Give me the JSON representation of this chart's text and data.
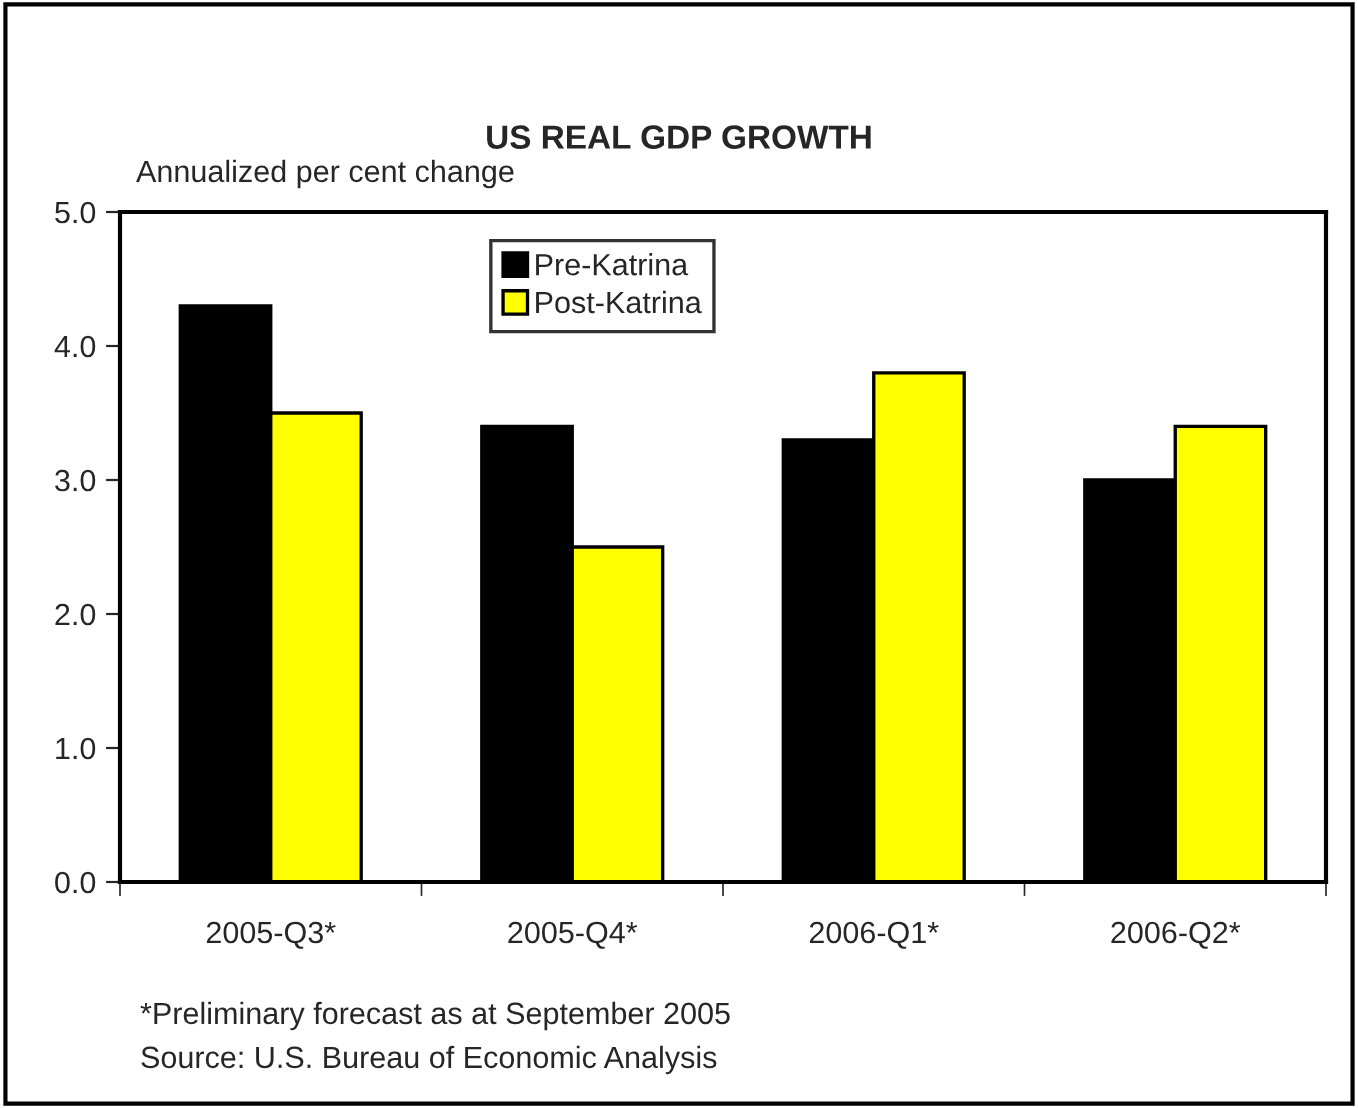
{
  "chart_data": {
    "type": "bar",
    "title": "US REAL GDP GROWTH",
    "ylabel": "Annualized per cent change",
    "categories": [
      "2005-Q3*",
      "2005-Q4*",
      "2006-Q1*",
      "2006-Q2*"
    ],
    "series": [
      {
        "name": "Pre-Katrina",
        "color": "#000000",
        "values": [
          4.3,
          3.4,
          3.3,
          3.0
        ]
      },
      {
        "name": "Post-Katrina",
        "color": "#ffff00",
        "values": [
          3.5,
          2.5,
          3.8,
          3.4
        ]
      }
    ],
    "ylim": [
      0,
      5
    ],
    "yticks": [
      {
        "value": 0,
        "label": "0.0"
      },
      {
        "value": 1,
        "label": "1.0"
      },
      {
        "value": 2,
        "label": "2.0"
      },
      {
        "value": 3,
        "label": "3.0"
      },
      {
        "value": 4,
        "label": "4.0"
      },
      {
        "value": 5,
        "label": "5.0"
      }
    ],
    "grid": false,
    "legend": "top",
    "annotations": [
      "*Preliminary forecast as at September 2005",
      "Source: U.S. Bureau of Economic Analysis"
    ]
  }
}
